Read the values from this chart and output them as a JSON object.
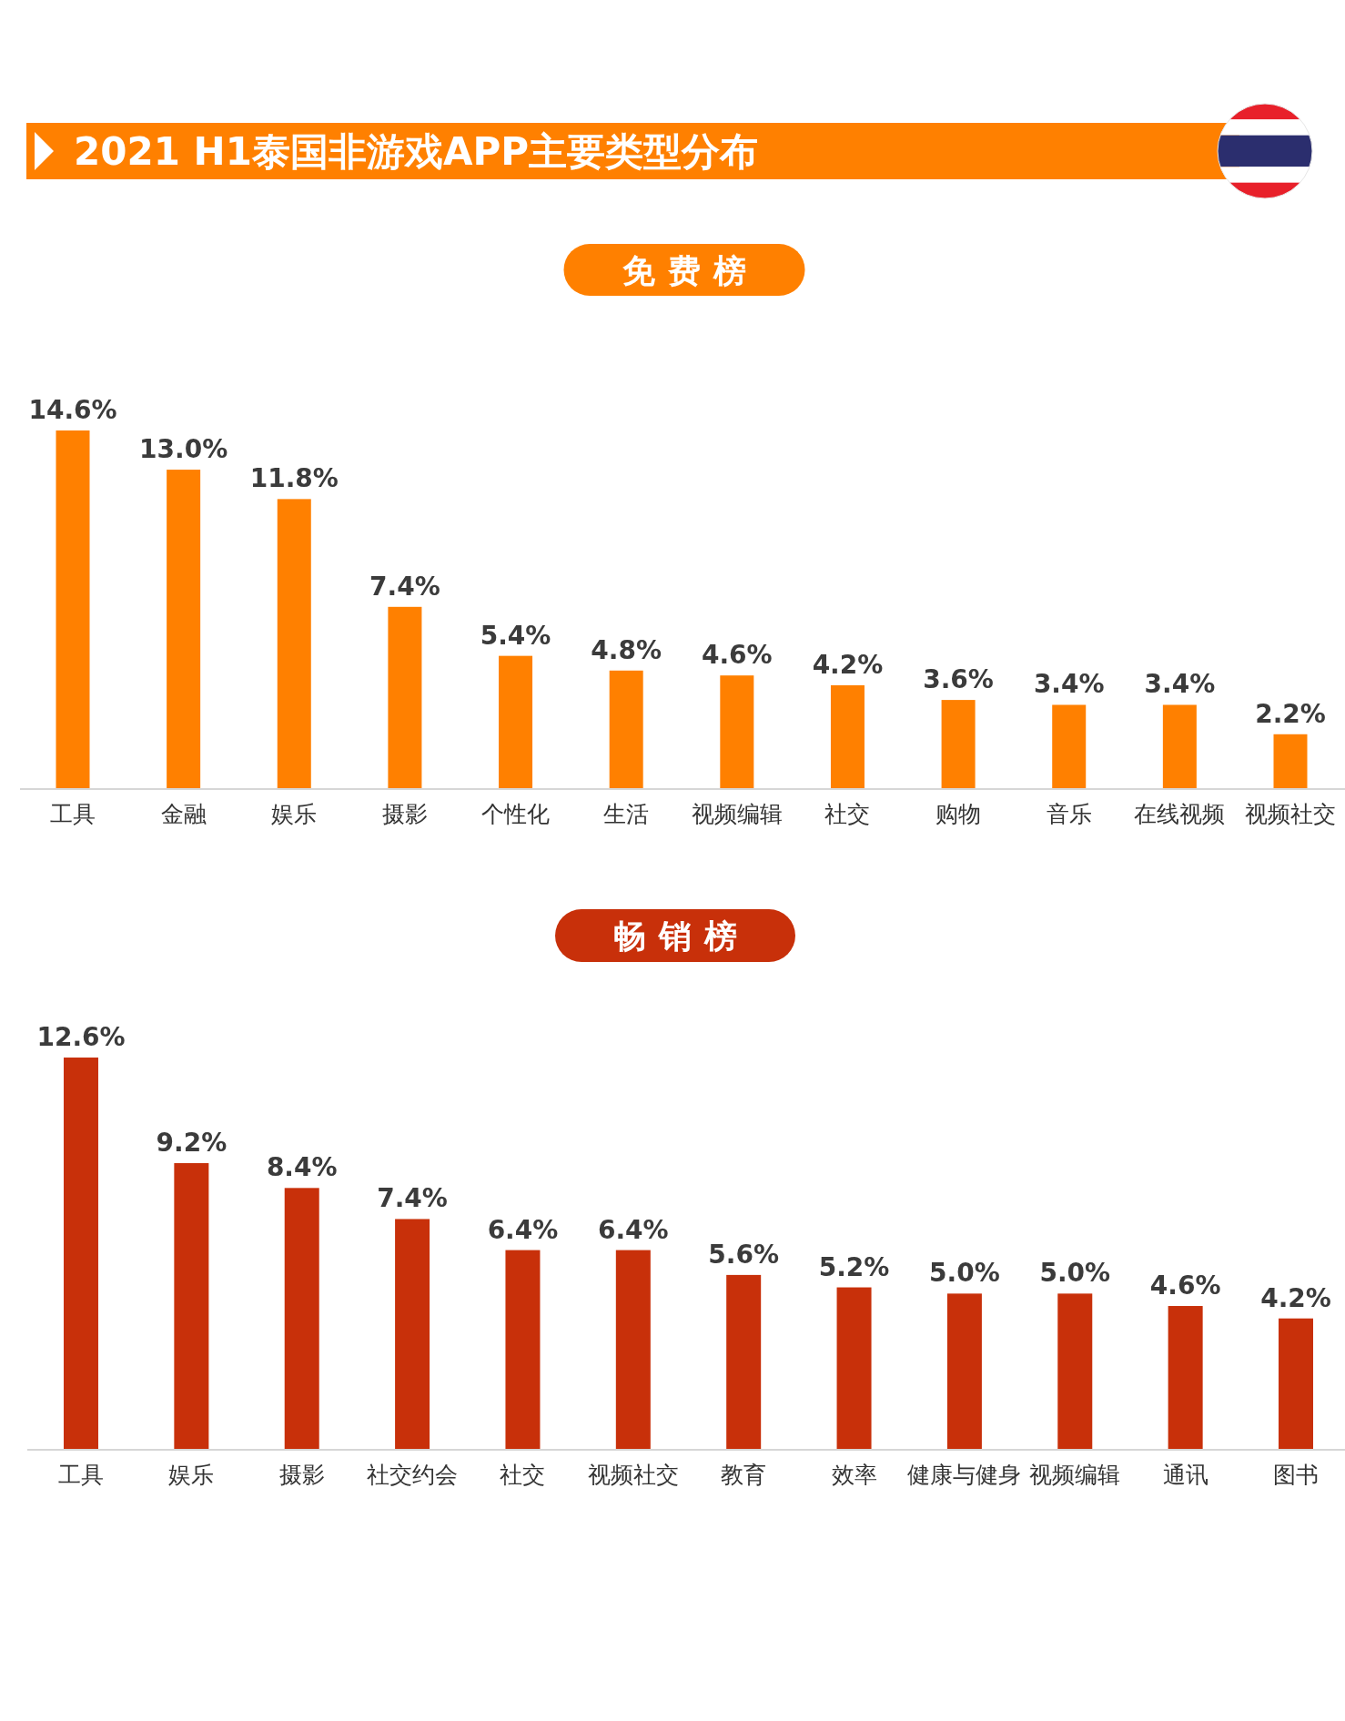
{
  "chart_data": [
    {
      "type": "bar",
      "title": "2021 H1泰国非游戏APP主要类型分布",
      "subtitle": "免费榜",
      "categories": [
        "工具",
        "金融",
        "娱乐",
        "摄影",
        "个性化",
        "生活",
        "视频编辑",
        "社交",
        "购物",
        "音乐",
        "在线视频",
        "视频社交"
      ],
      "values": [
        14.6,
        13.0,
        11.8,
        7.4,
        5.4,
        4.8,
        4.6,
        4.2,
        3.6,
        3.4,
        3.4,
        2.2
      ],
      "value_labels": [
        "14.6%",
        "13.0%",
        "11.8%",
        "7.4%",
        "5.4%",
        "4.8%",
        "4.6%",
        "4.2%",
        "3.6%",
        "3.4%",
        "3.4%",
        "2.2%"
      ],
      "color": "#ff8000"
    },
    {
      "type": "bar",
      "title": "畅销榜",
      "categories": [
        "工具",
        "娱乐",
        "摄影",
        "社交约会",
        "社交",
        "视频社交",
        "教育",
        "效率",
        "健康与健身",
        "视频编辑",
        "通讯",
        "图书"
      ],
      "values": [
        12.6,
        9.2,
        8.4,
        7.4,
        6.4,
        6.4,
        5.6,
        5.2,
        5.0,
        5.0,
        4.6,
        4.2
      ],
      "value_labels": [
        "12.6%",
        "9.2%",
        "8.4%",
        "7.4%",
        "6.4%",
        "6.4%",
        "5.6%",
        "5.2%",
        "5.0%",
        "5.0%",
        "4.6%",
        "4.2%"
      ],
      "color": "#c8300a"
    }
  ]
}
